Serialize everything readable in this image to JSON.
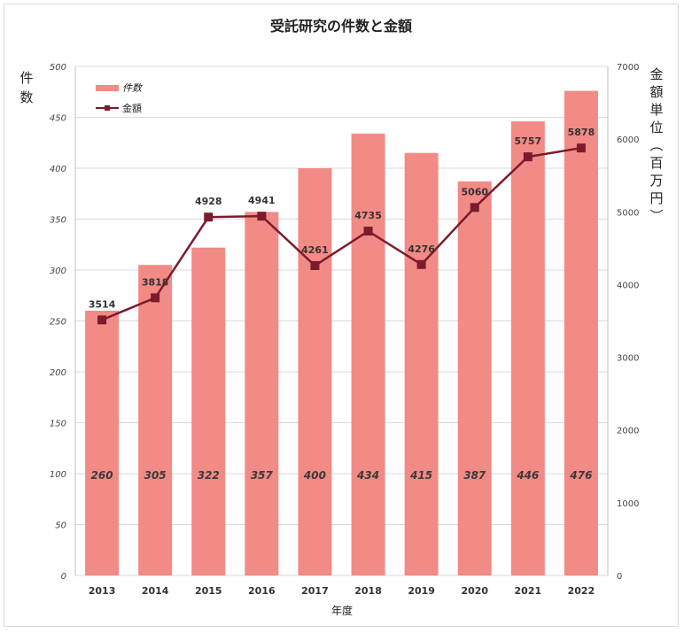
{
  "chart_data": {
    "type": "bar",
    "title": "受託研究の件数と金額",
    "xlabel": "年度",
    "ylabel_left": [
      "件",
      "数"
    ],
    "ylabel_right": [
      "金",
      "額",
      "単",
      "位",
      "︵",
      "百",
      "万",
      "円",
      "︶"
    ],
    "categories": [
      "2013",
      "2014",
      "2015",
      "2016",
      "2017",
      "2018",
      "2019",
      "2020",
      "2021",
      "2022"
    ],
    "series": [
      {
        "name": "件数",
        "type": "bar",
        "axis": "left",
        "color": "#f28a86",
        "values": [
          260,
          305,
          322,
          357,
          400,
          434,
          415,
          387,
          446,
          476
        ]
      },
      {
        "name": "金額",
        "type": "line",
        "axis": "right",
        "color": "#7b1b2c",
        "values": [
          3514,
          3818,
          4928,
          4941,
          4261,
          4735,
          4276,
          5060,
          5757,
          5878
        ]
      }
    ],
    "ylim_left": [
      0,
      500
    ],
    "yticks_left": [
      0,
      50,
      100,
      150,
      200,
      250,
      300,
      350,
      400,
      450,
      500
    ],
    "ylim_right": [
      0,
      7000
    ],
    "yticks_right": [
      0,
      1000,
      2000,
      3000,
      4000,
      5000,
      6000,
      7000
    ],
    "grid": true,
    "legend_position": "top-left"
  }
}
